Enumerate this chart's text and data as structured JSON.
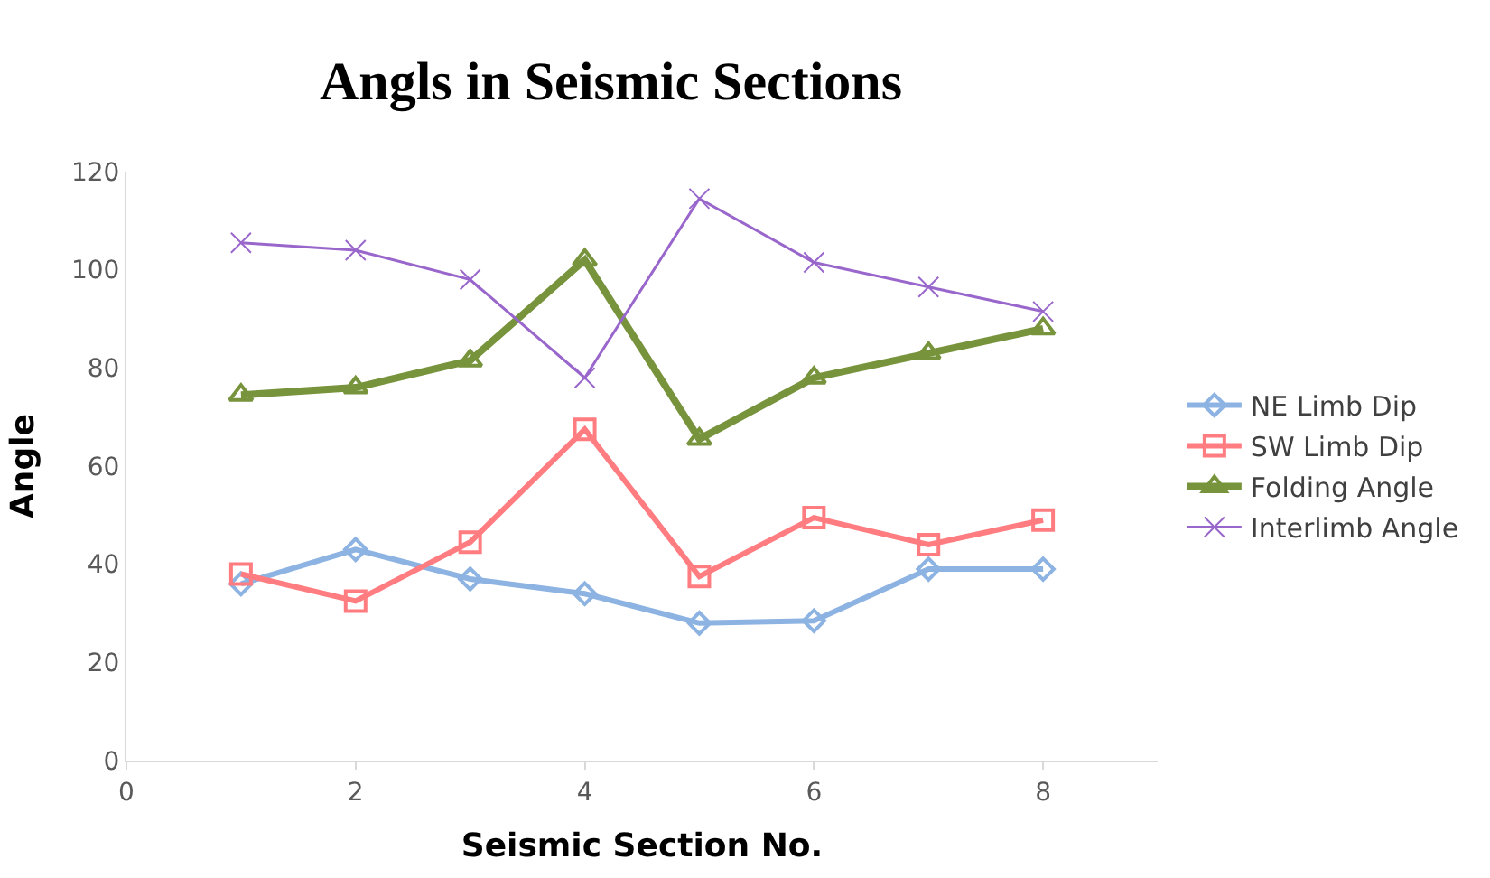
{
  "chart_data": {
    "type": "line",
    "title": "Angls in Seismic Sections",
    "xlabel": "Seismic Section No.",
    "ylabel": "Angle",
    "x": [
      1,
      2,
      3,
      4,
      5,
      6,
      7,
      8
    ],
    "xlim": [
      0,
      9
    ],
    "xticks": [
      0,
      2,
      4,
      6,
      8
    ],
    "ylim": [
      0,
      120
    ],
    "yticks": [
      0,
      20,
      40,
      60,
      80,
      100,
      120
    ],
    "grid": false,
    "legend": "right",
    "series": [
      {
        "name": "NE Limb Dip",
        "color": "#8db3e2",
        "marker": "diamond",
        "values": [
          36,
          43,
          37,
          34,
          28,
          28.5,
          39,
          39
        ]
      },
      {
        "name": "SW Limb Dip",
        "color": "#ff7c80",
        "marker": "square",
        "values": [
          38,
          32.5,
          44.5,
          67.5,
          37.5,
          49.5,
          44,
          49
        ]
      },
      {
        "name": "Folding Angle",
        "color": "#77933c",
        "marker": "triangle",
        "values": [
          74.5,
          76,
          81.5,
          102,
          65.5,
          78,
          83,
          88
        ]
      },
      {
        "name": "Interlimb Angle",
        "color": "#9966cc",
        "marker": "cross",
        "values": [
          105.5,
          104,
          98,
          78,
          114.5,
          101.5,
          96.5,
          91.5
        ]
      }
    ]
  }
}
